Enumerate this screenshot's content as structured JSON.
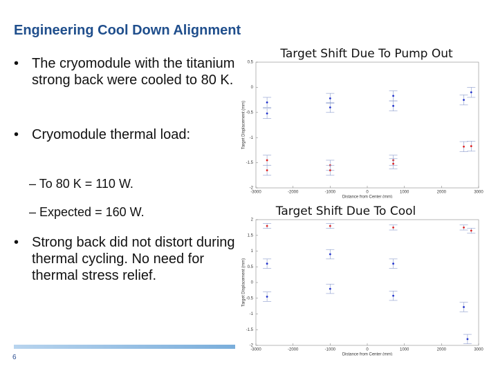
{
  "slide": {
    "title": "Engineering Cool Down Alignment",
    "bullets": [
      {
        "text": "The cryomodule with the titanium strong back were cooled to 80 K."
      },
      {
        "text": "Cryomodule thermal load:",
        "sub": [
          "To 80 K = 110 W.",
          "Expected = 160 W."
        ]
      },
      {
        "text": "Strong back did not distort during thermal cycling.  No need for thermal stress relief."
      }
    ],
    "page_number": "6"
  },
  "chart_data": [
    {
      "type": "scatter",
      "title": "Target Shift Due To Pump Out",
      "x_label": "Distance from Center (mm)",
      "y_label": "Target Displacement (mm)",
      "xlim": [
        -3000,
        3000
      ],
      "xticks": [
        -3000,
        -2000,
        -1000,
        0,
        1000,
        2000,
        3000
      ],
      "ylim": [
        -2,
        0.5
      ],
      "yticks": [
        0.5,
        0,
        -0.5,
        -1,
        -1.5,
        -2
      ],
      "series": [
        {
          "color": "#2233cc",
          "yerr": 0.1,
          "x": [
            -2700,
            -2700,
            -1000,
            -1000,
            700,
            700,
            2600,
            2800
          ],
          "values": [
            -0.3,
            -0.52,
            -0.22,
            -0.4,
            -0.17,
            -0.37,
            -0.25,
            -0.1
          ]
        },
        {
          "color": "#dd2222",
          "yerr": 0.1,
          "x": [
            -2700,
            -2700,
            -1000,
            -1000,
            700,
            700,
            2600,
            2800
          ],
          "values": [
            -1.45,
            -1.65,
            -1.55,
            -1.65,
            -1.45,
            -1.52,
            -1.18,
            -1.17
          ]
        }
      ]
    },
    {
      "type": "scatter",
      "title": "Target Shift Due To Cool",
      "x_label": "Distance from Center (mm)",
      "y_label": "Target Displacement (mm)",
      "xlim": [
        -3000,
        3000
      ],
      "xticks": [
        -3000,
        -2000,
        -1000,
        0,
        1000,
        2000,
        3000
      ],
      "ylim": [
        -2,
        2
      ],
      "yticks": [
        2,
        1.5,
        1,
        0.5,
        0,
        -0.5,
        -1,
        -1.5,
        -2
      ],
      "series": [
        {
          "color": "#2233cc",
          "yerr": 0.15,
          "x": [
            -2700,
            -2700,
            -1000,
            -1000,
            700,
            700,
            2600,
            2700
          ],
          "values": [
            0.6,
            -0.45,
            0.9,
            -0.2,
            0.6,
            -0.42,
            -0.78,
            -1.8
          ]
        },
        {
          "color": "#dd2222",
          "yerr": 0.08,
          "x": [
            -2700,
            -1000,
            700,
            2600,
            2800
          ],
          "values": [
            1.8,
            1.8,
            1.75,
            1.75,
            1.65
          ]
        }
      ]
    }
  ]
}
